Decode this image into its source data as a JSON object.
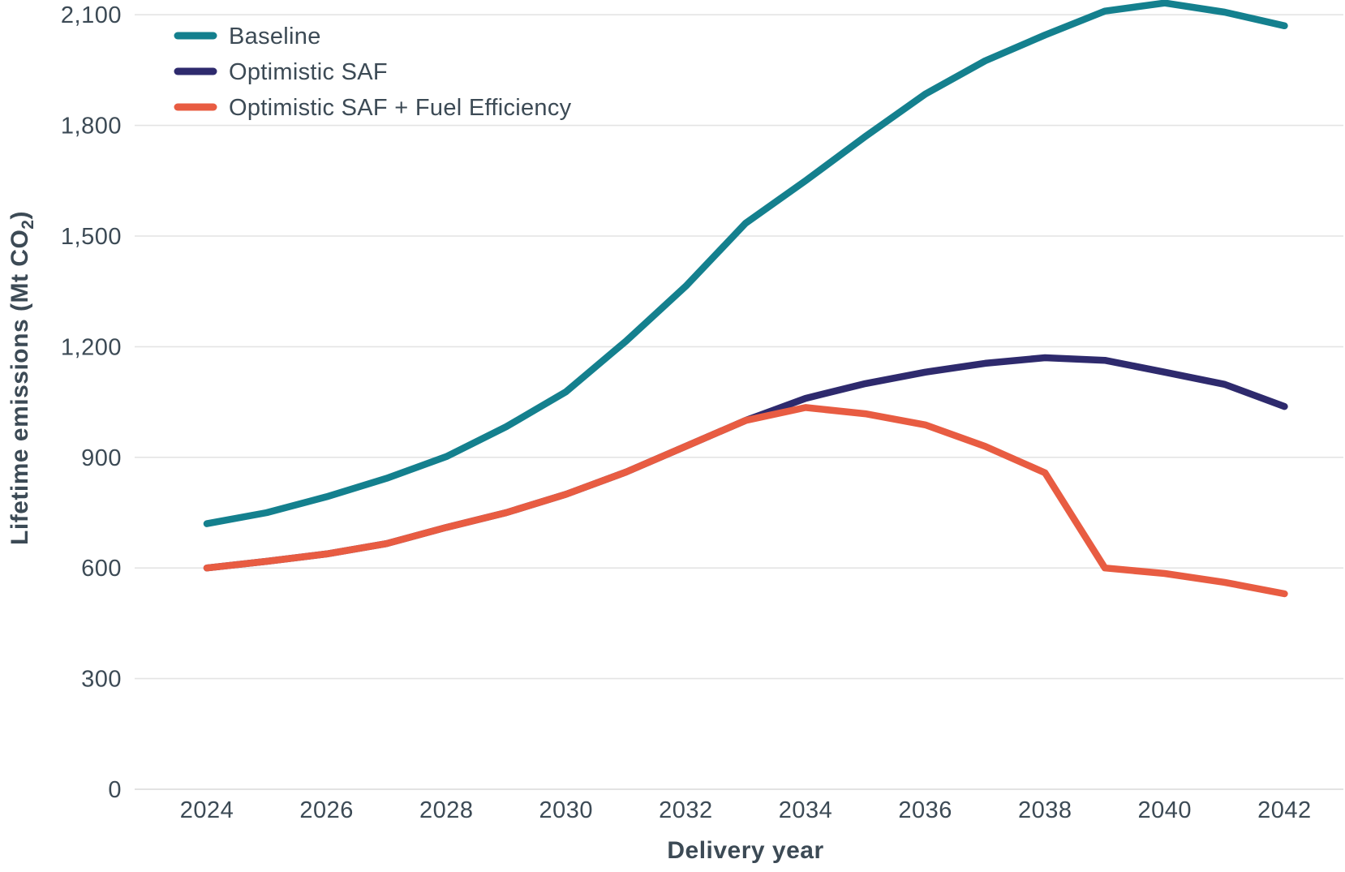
{
  "chart_data": {
    "type": "line",
    "title": "",
    "xlabel": "Delivery year",
    "ylabel": "Lifetime emissions (Mt CO₂)",
    "ylabel_parts": {
      "main": "Lifetime emissions (Mt CO",
      "subscript": "2",
      "suffix": ")"
    },
    "x": [
      2024,
      2025,
      2026,
      2027,
      2028,
      2029,
      2030,
      2031,
      2032,
      2033,
      2034,
      2035,
      2036,
      2037,
      2038,
      2039,
      2040,
      2041,
      2042
    ],
    "series": [
      {
        "name": "Baseline",
        "color": "#14808E",
        "values": [
          720,
          750,
          793,
          843,
          902,
          983,
          1078,
          1215,
          1364,
          1535,
          1650,
          1770,
          1885,
          1975,
          2045,
          2110,
          2132,
          2107,
          2070
        ]
      },
      {
        "name": "Optimistic SAF",
        "color": "#2E2A6D",
        "values": [
          600,
          618,
          638,
          666,
          710,
          750,
          800,
          860,
          930,
          1000,
          1060,
          1100,
          1131,
          1155,
          1170,
          1163,
          1131,
          1098,
          1038
        ]
      },
      {
        "name": "Optimistic SAF + Fuel Efficiency",
        "color": "#E85C42",
        "values": [
          600,
          618,
          638,
          666,
          710,
          750,
          800,
          860,
          930,
          1000,
          1035,
          1018,
          988,
          930,
          858,
          600,
          585,
          561,
          530
        ]
      }
    ],
    "ylim": [
      0,
      2100
    ],
    "ytick_step": 300,
    "ytick_values": [
      0,
      300,
      600,
      900,
      1200,
      1500,
      1800,
      2100
    ],
    "ytick_labels": [
      "0",
      "300",
      "600",
      "900",
      "1,200",
      "1,500",
      "1,800",
      "2,100"
    ],
    "xtick_values": [
      2024,
      2026,
      2028,
      2030,
      2032,
      2034,
      2036,
      2038,
      2040,
      2042
    ],
    "xtick_labels": [
      "2024",
      "2026",
      "2028",
      "2030",
      "2032",
      "2034",
      "2036",
      "2038",
      "2040",
      "2042"
    ],
    "grid": "horizontal",
    "legend_position": "top-left"
  },
  "colors": {
    "text": "#3c4a55",
    "gridline": "#e4e4e4",
    "axis_line": "#dadada",
    "background": "#ffffff",
    "series_baseline": "#14808E",
    "series_optimistic_saf": "#2E2A6D",
    "series_optimistic_saf_fe": "#E85C42"
  }
}
